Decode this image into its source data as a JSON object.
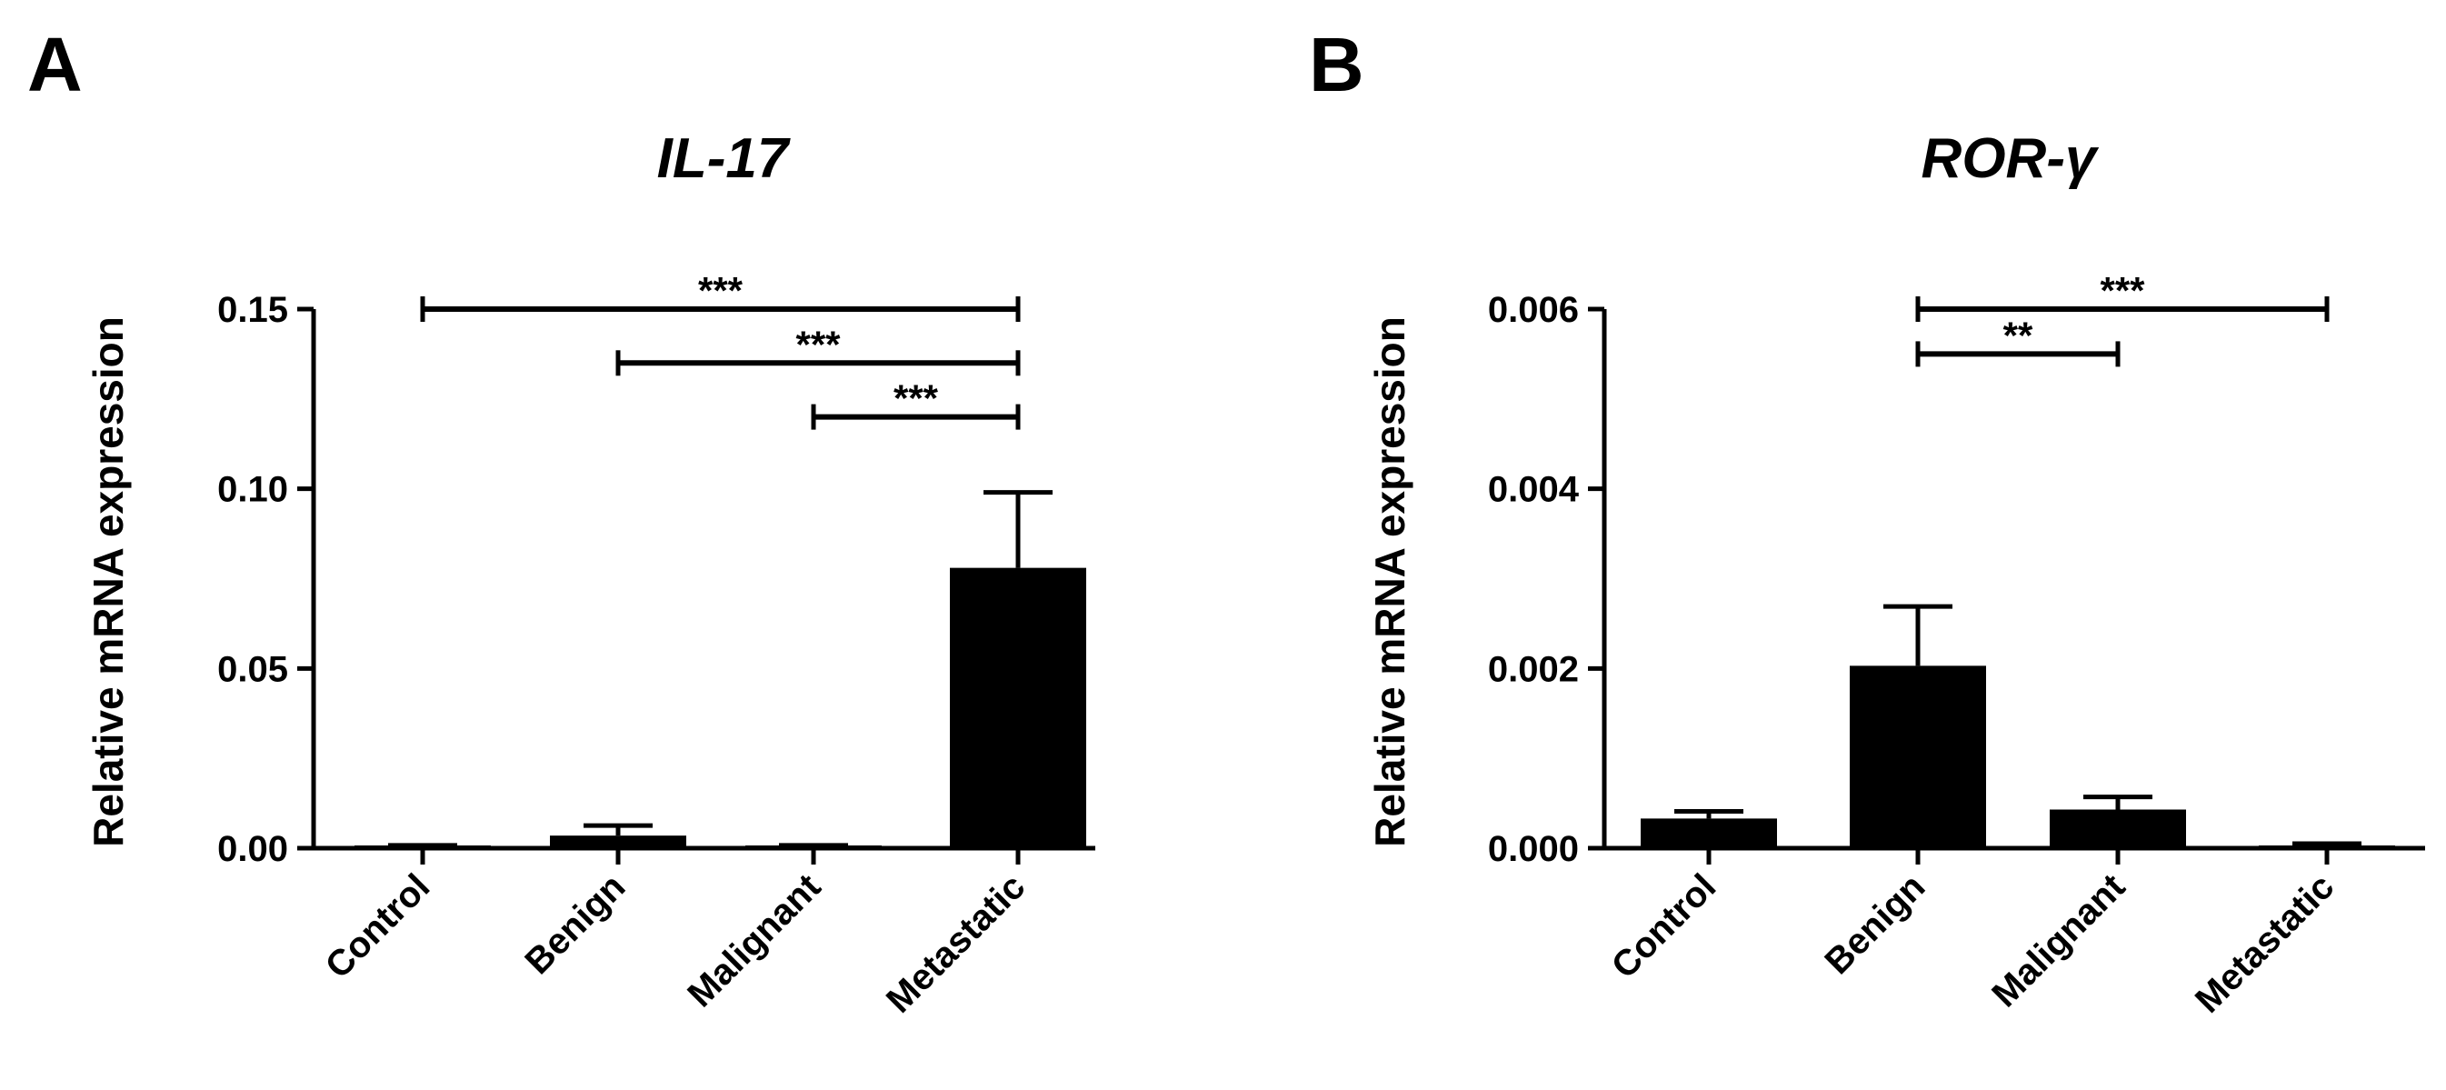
{
  "chart_data": [
    {
      "type": "bar",
      "panel": "A",
      "title": "IL-17",
      "xlabel": "",
      "ylabel": "Relative mRNA expression",
      "categories": [
        "Control",
        "Benign",
        "Malignant",
        "Metastatic"
      ],
      "values": [
        0.0005,
        0.0035,
        0.0005,
        0.078
      ],
      "errors": [
        0.0003,
        0.0028,
        0.0003,
        0.021
      ],
      "ylim": [
        0,
        0.15
      ],
      "yticks": [
        "0.00",
        "0.05",
        "0.10",
        "0.15"
      ],
      "significance": [
        {
          "from": 0,
          "to": 3,
          "label": "***",
          "y": 0.15
        },
        {
          "from": 1,
          "to": 3,
          "label": "***",
          "y": 0.135
        },
        {
          "from": 2,
          "to": 3,
          "label": "***",
          "y": 0.12
        }
      ],
      "grid": false,
      "bar_color": "#000000"
    },
    {
      "type": "bar",
      "panel": "B",
      "title": "ROR-γ",
      "xlabel": "",
      "ylabel": "Relative mRNA expression",
      "categories": [
        "Control",
        "Benign",
        "Malignant",
        "Metastatic"
      ],
      "values": [
        0.00033,
        0.00203,
        0.00043,
        3e-05
      ],
      "errors": [
        8e-05,
        0.00066,
        0.00014,
        2e-05
      ],
      "ylim": [
        0,
        0.006
      ],
      "yticks": [
        "0.000",
        "0.002",
        "0.004",
        "0.006"
      ],
      "significance": [
        {
          "from": 1,
          "to": 3,
          "label": "***",
          "y": 0.006
        },
        {
          "from": 1,
          "to": 2,
          "label": "**",
          "y": 0.0055
        }
      ],
      "grid": false,
      "bar_color": "#000000"
    }
  ]
}
